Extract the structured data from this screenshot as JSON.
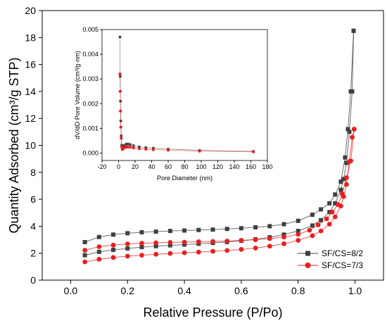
{
  "chart_data": [
    {
      "type": "scatter",
      "xlabel": "Relative Pressure (P/Po)",
      "ylabel": "Quantity Adsorbed (cm³/g STP)",
      "xlim": [
        -0.1,
        1.1
      ],
      "ylim": [
        0,
        20
      ],
      "x_ticks": [
        "0.0",
        "0.2",
        "0.4",
        "0.6",
        "0.8",
        "1.0"
      ],
      "y_ticks": [
        "0",
        "2",
        "4",
        "6",
        "8",
        "10",
        "12",
        "14",
        "16",
        "18",
        "20"
      ],
      "legend_position": "bottom-right",
      "legend": [
        "SF/CS=8/2",
        "SF/CS=7/3"
      ],
      "series": [
        {
          "name": "SF/CS=8/2",
          "color": "#404040",
          "marker": "square",
          "adsorption": [
            [
              0.05,
              1.85
            ],
            [
              0.1,
              2.1
            ],
            [
              0.15,
              2.25
            ],
            [
              0.2,
              2.35
            ],
            [
              0.25,
              2.45
            ],
            [
              0.3,
              2.52
            ],
            [
              0.35,
              2.58
            ],
            [
              0.4,
              2.64
            ],
            [
              0.45,
              2.7
            ],
            [
              0.5,
              2.76
            ],
            [
              0.55,
              2.83
            ],
            [
              0.6,
              2.92
            ],
            [
              0.65,
              3.03
            ],
            [
              0.7,
              3.18
            ],
            [
              0.75,
              3.38
            ],
            [
              0.8,
              3.65
            ],
            [
              0.85,
              4.05
            ],
            [
              0.88,
              4.45
            ],
            [
              0.91,
              5.05
            ],
            [
              0.93,
              5.7
            ],
            [
              0.95,
              6.7
            ],
            [
              0.96,
              7.5
            ],
            [
              0.97,
              8.7
            ],
            [
              0.98,
              11.0
            ],
            [
              0.99,
              14.0
            ],
            [
              0.995,
              18.5
            ]
          ],
          "desorption": [
            [
              0.995,
              18.5
            ],
            [
              0.985,
              14.0
            ],
            [
              0.975,
              11.2
            ],
            [
              0.965,
              9.1
            ],
            [
              0.95,
              7.3
            ],
            [
              0.93,
              6.35
            ],
            [
              0.91,
              5.7
            ],
            [
              0.88,
              5.25
            ],
            [
              0.85,
              4.85
            ],
            [
              0.8,
              4.4
            ],
            [
              0.75,
              4.15
            ],
            [
              0.7,
              4.0
            ],
            [
              0.65,
              3.92
            ],
            [
              0.6,
              3.85
            ],
            [
              0.55,
              3.8
            ],
            [
              0.5,
              3.75
            ],
            [
              0.45,
              3.72
            ],
            [
              0.4,
              3.68
            ],
            [
              0.35,
              3.65
            ],
            [
              0.3,
              3.6
            ],
            [
              0.25,
              3.55
            ],
            [
              0.2,
              3.48
            ],
            [
              0.15,
              3.38
            ],
            [
              0.1,
              3.2
            ],
            [
              0.05,
              2.82
            ]
          ]
        },
        {
          "name": "SF/CS=7/3",
          "color": "#e82020",
          "marker": "circle",
          "adsorption": [
            [
              0.05,
              1.35
            ],
            [
              0.1,
              1.55
            ],
            [
              0.15,
              1.68
            ],
            [
              0.2,
              1.78
            ],
            [
              0.25,
              1.85
            ],
            [
              0.3,
              1.92
            ],
            [
              0.35,
              1.98
            ],
            [
              0.4,
              2.03
            ],
            [
              0.45,
              2.08
            ],
            [
              0.5,
              2.14
            ],
            [
              0.55,
              2.2
            ],
            [
              0.6,
              2.28
            ],
            [
              0.65,
              2.38
            ],
            [
              0.7,
              2.52
            ],
            [
              0.75,
              2.7
            ],
            [
              0.8,
              2.95
            ],
            [
              0.85,
              3.3
            ],
            [
              0.88,
              3.65
            ],
            [
              0.91,
              4.15
            ],
            [
              0.93,
              4.7
            ],
            [
              0.95,
              5.5
            ],
            [
              0.96,
              6.2
            ],
            [
              0.97,
              7.1
            ],
            [
              0.98,
              8.8
            ],
            [
              0.99,
              10.6
            ],
            [
              0.997,
              11.2
            ]
          ],
          "desorption": [
            [
              0.997,
              11.2
            ],
            [
              0.985,
              8.85
            ],
            [
              0.97,
              7.6
            ],
            [
              0.955,
              6.4
            ],
            [
              0.94,
              5.6
            ],
            [
              0.92,
              5.05
            ],
            [
              0.9,
              4.55
            ],
            [
              0.87,
              4.1
            ],
            [
              0.84,
              3.7
            ],
            [
              0.8,
              3.4
            ],
            [
              0.75,
              3.2
            ],
            [
              0.7,
              3.08
            ],
            [
              0.65,
              3.0
            ],
            [
              0.6,
              2.95
            ],
            [
              0.55,
              2.9
            ],
            [
              0.5,
              2.87
            ],
            [
              0.45,
              2.85
            ],
            [
              0.4,
              2.82
            ],
            [
              0.35,
              2.8
            ],
            [
              0.3,
              2.77
            ],
            [
              0.25,
              2.74
            ],
            [
              0.2,
              2.69
            ],
            [
              0.15,
              2.6
            ],
            [
              0.1,
              2.48
            ],
            [
              0.05,
              2.22
            ]
          ]
        }
      ]
    },
    {
      "type": "scatter",
      "position": "inset-top-left",
      "xlabel": "Pore Diameter (nm)",
      "ylabel": "dV/dD Pore Volume (cm³/g·nm)",
      "xlim": [
        -20,
        180
      ],
      "ylim": [
        -0.0003,
        0.005
      ],
      "x_ticks": [
        "-20",
        "0",
        "20",
        "40",
        "60",
        "80",
        "100",
        "120",
        "140",
        "160",
        "180"
      ],
      "y_ticks": [
        "0.000",
        "0.001",
        "0.002",
        "0.003",
        "0.004",
        "0.005"
      ],
      "series": [
        {
          "name": "SF/CS=8/2",
          "color": "#404040",
          "marker": "square",
          "points": [
            [
              1.7,
              0.0047
            ],
            [
              2.0,
              0.0031
            ],
            [
              2.3,
              0.0021
            ],
            [
              2.7,
              0.0013
            ],
            [
              3.2,
              0.0007
            ],
            [
              3.8,
              0.00032
            ],
            [
              4.5,
              0.00025
            ],
            [
              5.5,
              0.00027
            ],
            [
              7.0,
              0.00031
            ],
            [
              9.0,
              0.00036
            ],
            [
              11.0,
              0.00037
            ],
            [
              14.0,
              0.00035
            ],
            [
              18.0,
              0.0003
            ],
            [
              25.0,
              0.00025
            ],
            [
              33.0,
              0.00022
            ],
            [
              42.0,
              0.0002
            ],
            [
              60.0,
              0.00016
            ],
            [
              98.0,
              0.00011
            ],
            [
              163.0,
              7e-05
            ]
          ]
        },
        {
          "name": "SF/CS=7/3",
          "color": "#e82020",
          "marker": "circle",
          "points": [
            [
              1.7,
              0.0032
            ],
            [
              2.0,
              0.0025
            ],
            [
              2.3,
              0.0017
            ],
            [
              2.7,
              0.00105
            ],
            [
              3.2,
              0.0006
            ],
            [
              3.8,
              0.00025
            ],
            [
              4.5,
              0.00015
            ],
            [
              5.5,
              0.00018
            ],
            [
              7.0,
              0.00022
            ],
            [
              9.0,
              0.00024
            ],
            [
              11.0,
              0.00025
            ],
            [
              14.0,
              0.00024
            ],
            [
              18.0,
              0.00021
            ],
            [
              25.0,
              0.00018
            ],
            [
              33.0,
              0.00016
            ],
            [
              42.0,
              0.00014
            ],
            [
              60.0,
              0.00012
            ],
            [
              98.0,
              8e-05
            ],
            [
              163.0,
              5e-05
            ]
          ]
        }
      ]
    }
  ]
}
